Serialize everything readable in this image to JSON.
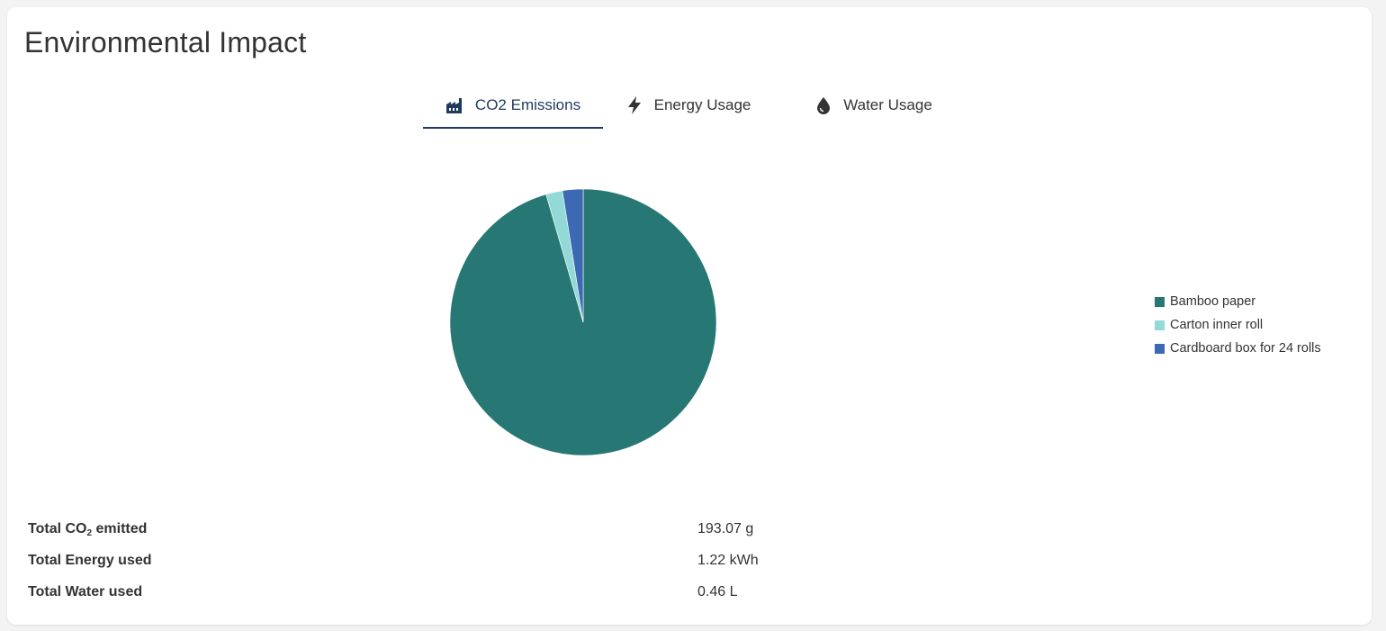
{
  "header": {
    "title": "Environmental Impact"
  },
  "tabs": [
    {
      "label": "CO2 Emissions",
      "icon": "factory-icon",
      "active": true
    },
    {
      "label": "Energy Usage",
      "icon": "lightning-icon",
      "active": false
    },
    {
      "label": "Water Usage",
      "icon": "water-drop-icon",
      "active": false
    }
  ],
  "colors": {
    "active_tab": "#1f3a5f",
    "text": "#333333"
  },
  "chart_data": {
    "type": "pie",
    "categories": [
      "Bamboo paper",
      "Carton inner roll",
      "Cardboard box for 24 rolls"
    ],
    "values": [
      95.5,
      2.0,
      2.5
    ],
    "colors": [
      "#277874",
      "#93d9d8",
      "#3d68b3"
    ],
    "legend_position": "right"
  },
  "totals": [
    {
      "label_prefix": "Total CO",
      "label_sub": "2",
      "label_suffix": " emitted",
      "value": "193.07 g"
    },
    {
      "label": "Total Energy used",
      "value": "1.22 kWh"
    },
    {
      "label": "Total Water used",
      "value": "0.46 L"
    }
  ]
}
